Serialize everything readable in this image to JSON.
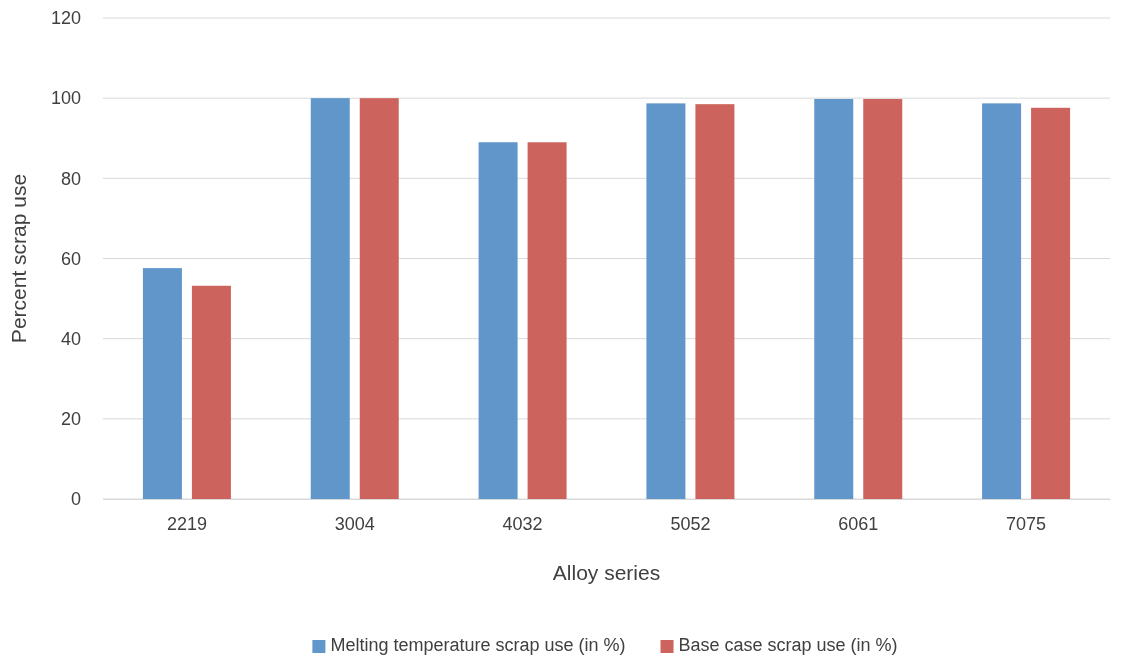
{
  "chart_data": {
    "type": "bar",
    "xlabel": "Alloy series",
    "ylabel": "Percent scrap use",
    "categories": [
      "2219",
      "3004",
      "4032",
      "5052",
      "6061",
      "7075"
    ],
    "series": [
      {
        "name": "Melting temperature scrap use (in %)",
        "color": "#6096ca",
        "values": [
          57.6,
          100,
          89,
          98.7,
          99.8,
          98.7
        ]
      },
      {
        "name": "Base case scrap use (in %)",
        "color": "#cc645d",
        "values": [
          53.2,
          100,
          89,
          98.5,
          99.8,
          97.6
        ]
      }
    ],
    "ylim": [
      0,
      120
    ],
    "yticks": [
      0,
      20,
      40,
      60,
      80,
      100,
      120
    ],
    "grid": "y",
    "legend": "bottom"
  }
}
